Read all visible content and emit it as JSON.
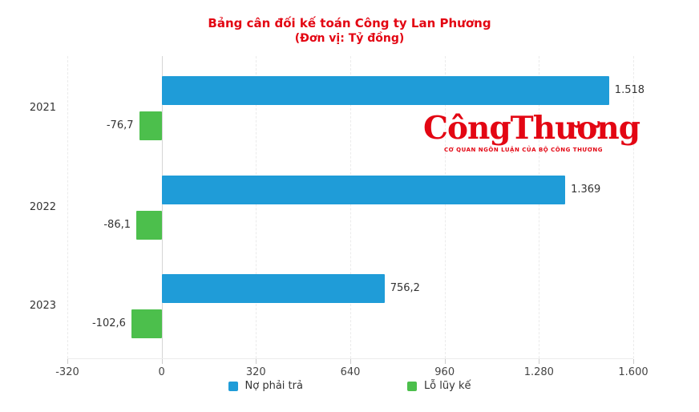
{
  "colors": {
    "title": "#e30613",
    "watermark": "#e30613",
    "debt": "#1f9cd8",
    "loss": "#4cbf4c",
    "axis_text": "#444444",
    "label_text": "#333333"
  },
  "title": "Bảng cân đối kế toán Công ty Lan Phương",
  "subtitle": "(Đơn vị: Tỷ đồng)",
  "watermark": {
    "brand": "CôngThương",
    "tagline": "CƠ QUAN NGÔN LUẬN CỦA BỘ CÔNG THƯƠNG"
  },
  "chart_data": {
    "type": "bar",
    "orientation": "horizontal",
    "title": "Bảng cân đối kế toán Công ty Lan Phương",
    "subtitle": "(Đơn vị: Tỷ đồng)",
    "categories": [
      "2021",
      "2022",
      "2023"
    ],
    "series": [
      {
        "name": "Nợ phải trả",
        "color": "#1f9cd8",
        "values": [
          1518,
          1369,
          756.2
        ],
        "value_labels": [
          "1.518",
          "1.369",
          "756,2"
        ]
      },
      {
        "name": "Lỗ lũy kế",
        "color": "#4cbf4c",
        "values": [
          -76.7,
          -86.1,
          -102.6
        ],
        "value_labels": [
          "-76,7",
          "-86,1",
          "-102,6"
        ]
      }
    ],
    "xlim": [
      -320,
      1600
    ],
    "x_ticks": [
      -320,
      0,
      320,
      640,
      960,
      1280,
      1600
    ],
    "x_tick_labels": [
      "-320",
      "0",
      "320",
      "640",
      "960",
      "1.280",
      "1.600"
    ],
    "grid": "vertical-dashed",
    "legend_position": "bottom"
  }
}
